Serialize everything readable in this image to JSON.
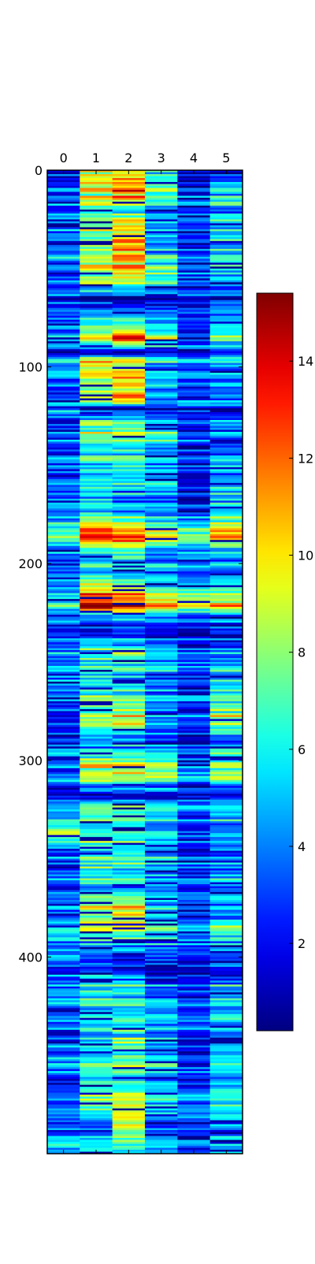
{
  "chart_data": {
    "type": "heatmap",
    "colormap": "jet",
    "columns": [
      "0",
      "1",
      "2",
      "3",
      "4",
      "5"
    ],
    "row_count": 500,
    "row_ticks": [
      "0",
      "100",
      "200",
      "300",
      "400"
    ],
    "row_tick_values": [
      0,
      100,
      200,
      300,
      400
    ],
    "colorbar": {
      "min": 0.2,
      "max": 15.4,
      "tick_labels": [
        "2",
        "4",
        "6",
        "8",
        "10",
        "12",
        "14"
      ],
      "tick_values": [
        2,
        4,
        6,
        8,
        10,
        12,
        14
      ]
    },
    "row_profile": [
      {
        "row": 0,
        "values": [
          1.5,
          9,
          9,
          6,
          1,
          1.5
        ]
      },
      {
        "row": 10,
        "values": [
          3,
          9.5,
          12.5,
          8,
          2.5,
          6
        ]
      },
      {
        "row": 20,
        "values": [
          3.5,
          7,
          6,
          4,
          3,
          4.5
        ]
      },
      {
        "row": 35,
        "values": [
          4,
          8,
          12,
          4.5,
          2.5,
          6
        ]
      },
      {
        "row": 55,
        "values": [
          3.5,
          9,
          9.5,
          7,
          3,
          5
        ]
      },
      {
        "row": 65,
        "values": [
          2.5,
          1,
          1,
          1,
          2,
          2.5
        ]
      },
      {
        "row": 85,
        "values": [
          5,
          10,
          12,
          9,
          3,
          7
        ]
      },
      {
        "row": 92,
        "values": [
          3,
          1,
          1,
          2,
          2,
          3
        ]
      },
      {
        "row": 97,
        "values": [
          4.5,
          9.5,
          9,
          5,
          4,
          5
        ]
      },
      {
        "row": 115,
        "values": [
          3,
          9,
          11,
          5,
          3,
          4
        ]
      },
      {
        "row": 121,
        "values": [
          4,
          1,
          1,
          1.5,
          2.5,
          2
        ]
      },
      {
        "row": 130,
        "values": [
          3,
          8,
          8,
          6,
          3,
          4
        ]
      },
      {
        "row": 150,
        "values": [
          4,
          6,
          6,
          5,
          2.5,
          4.5
        ]
      },
      {
        "row": 170,
        "values": [
          3,
          5,
          4,
          4,
          2,
          5
        ]
      },
      {
        "row": 186,
        "values": [
          7,
          13,
          12.5,
          9,
          8,
          11
        ]
      },
      {
        "row": 195,
        "values": [
          3,
          5,
          6,
          4,
          3,
          4
        ]
      },
      {
        "row": 205,
        "values": [
          4,
          6,
          5,
          4,
          3,
          4
        ]
      },
      {
        "row": 221,
        "values": [
          6,
          14,
          13.5,
          11,
          9,
          10
        ]
      },
      {
        "row": 230,
        "values": [
          3,
          1.5,
          1.5,
          2.5,
          2,
          2.5
        ]
      },
      {
        "row": 245,
        "values": [
          4,
          7,
          7,
          5,
          3,
          4
        ]
      },
      {
        "row": 260,
        "values": [
          3.5,
          6,
          5,
          4,
          3,
          5
        ]
      },
      {
        "row": 280,
        "values": [
          3,
          9,
          10,
          5,
          4,
          9
        ]
      },
      {
        "row": 290,
        "values": [
          3.5,
          4,
          4,
          3,
          2,
          4
        ]
      },
      {
        "row": 306,
        "values": [
          4,
          10,
          10,
          9,
          5,
          9
        ]
      },
      {
        "row": 318,
        "values": [
          3,
          1.5,
          1.5,
          2,
          2,
          2
        ]
      },
      {
        "row": 325,
        "values": [
          4,
          8,
          8,
          7,
          4,
          6
        ]
      },
      {
        "row": 335,
        "values": [
          8,
          6,
          6,
          5,
          3,
          4
        ]
      },
      {
        "row": 350,
        "values": [
          3.5,
          7,
          7,
          5,
          3,
          4
        ]
      },
      {
        "row": 365,
        "values": [
          3,
          6,
          5,
          5,
          3,
          5
        ]
      },
      {
        "row": 377,
        "values": [
          4,
          9,
          11,
          6,
          3,
          5
        ]
      },
      {
        "row": 385,
        "values": [
          5,
          8,
          8,
          6,
          4,
          7
        ]
      },
      {
        "row": 400,
        "values": [
          3,
          2,
          2,
          2,
          1.5,
          2.5
        ]
      },
      {
        "row": 415,
        "values": [
          4,
          6,
          6,
          4,
          3,
          5
        ]
      },
      {
        "row": 430,
        "values": [
          3,
          5,
          5,
          4,
          2.5,
          4.5
        ]
      },
      {
        "row": 445,
        "values": [
          4,
          5,
          8,
          5,
          3,
          5
        ]
      },
      {
        "row": 460,
        "values": [
          3.5,
          6,
          6,
          5,
          3,
          5
        ]
      },
      {
        "row": 470,
        "values": [
          3,
          8,
          8,
          6,
          4,
          6
        ]
      },
      {
        "row": 485,
        "values": [
          3.5,
          3,
          10,
          3,
          3,
          4
        ]
      },
      {
        "row": 495,
        "values": [
          4,
          5,
          5,
          4,
          3,
          4
        ]
      }
    ]
  }
}
